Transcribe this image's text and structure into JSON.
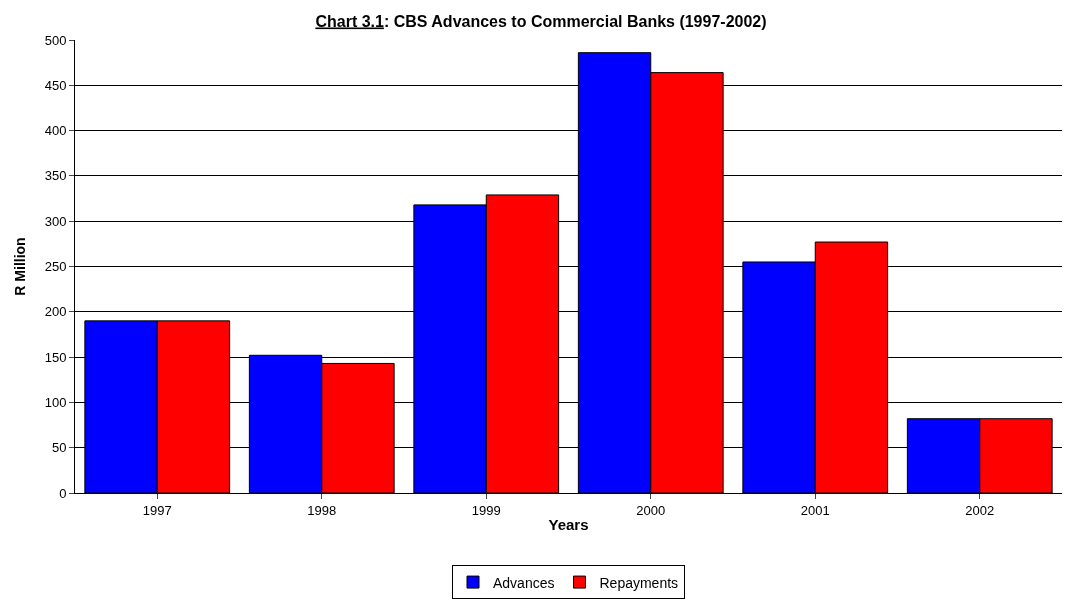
{
  "chart_data": {
    "type": "bar",
    "title": "Chart 3.1: CBS Advances to Commercial Banks (1997-2002)",
    "xlabel": "Years",
    "ylabel": "R Million",
    "categories": [
      "1997",
      "1998",
      "1999",
      "2000",
      "2001",
      "2002"
    ],
    "series": [
      {
        "name": "Advances",
        "color": "#0000ff",
        "values": [
          190,
          152,
          318,
          486,
          255,
          82
        ]
      },
      {
        "name": "Repayments",
        "color": "#ff0000",
        "values": [
          190,
          143,
          329,
          464,
          277,
          82
        ]
      }
    ],
    "ylim": [
      0,
      500
    ],
    "yticks": [
      0,
      50,
      100,
      150,
      200,
      250,
      300,
      350,
      400,
      450,
      500
    ],
    "grid": "y",
    "legend": "bottom"
  }
}
